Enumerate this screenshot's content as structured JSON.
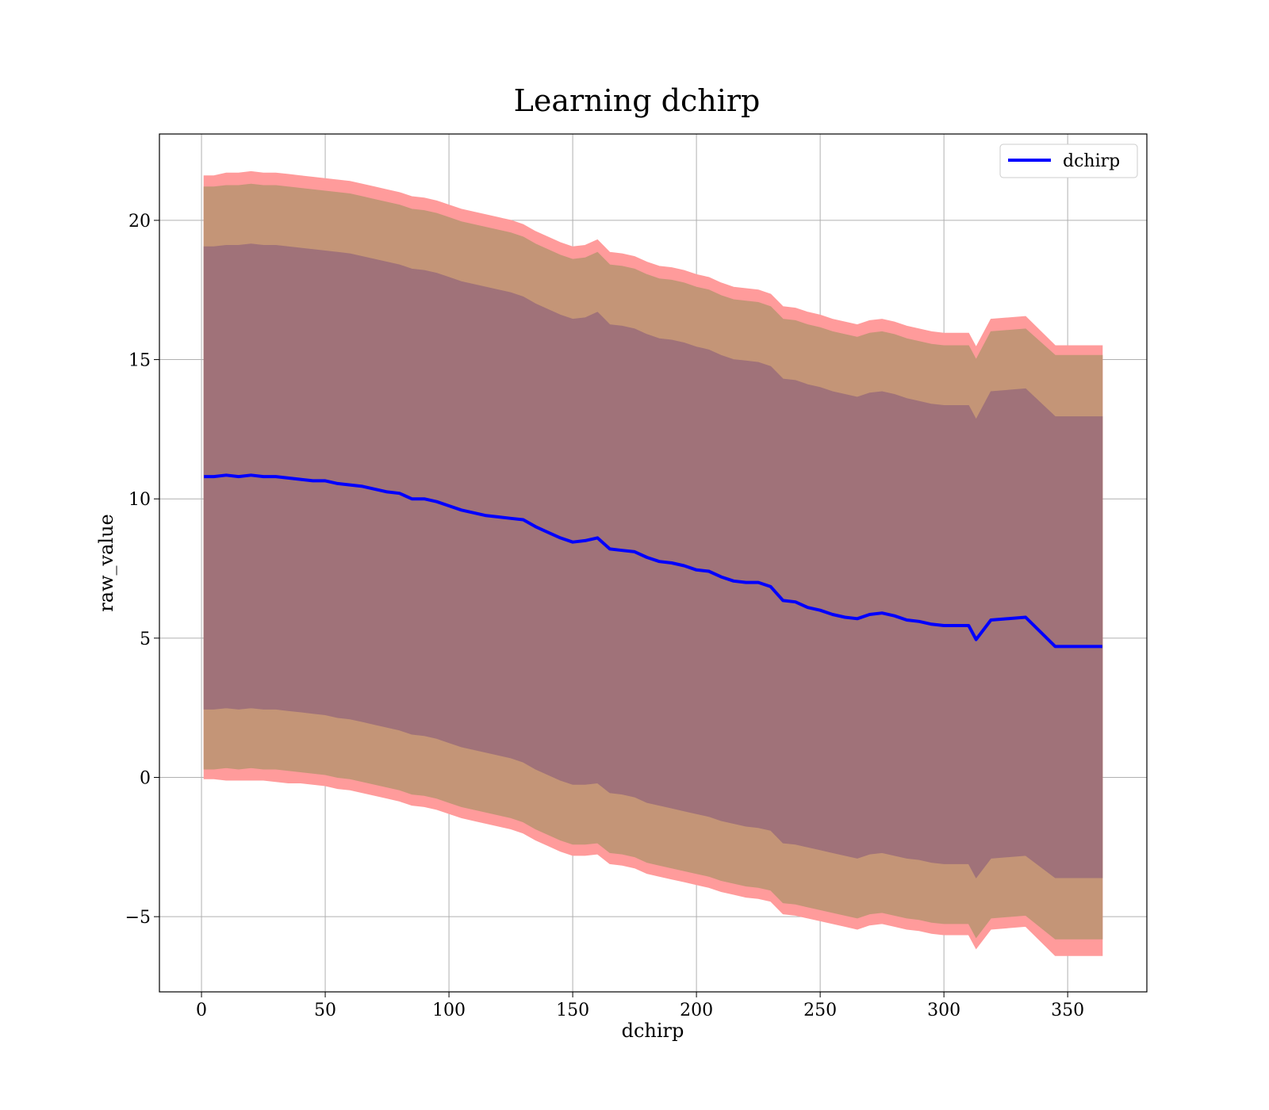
{
  "chart_data": {
    "type": "line",
    "title": "Learning dchirp",
    "xlabel": "dchirp",
    "ylabel": "raw_value",
    "xlim": [
      -17,
      382
    ],
    "ylim": [
      -7.7,
      23.1
    ],
    "xticks": [
      0,
      50,
      100,
      150,
      200,
      250,
      300,
      350
    ],
    "xtick_labels": [
      "0",
      "50",
      "100",
      "150",
      "200",
      "250",
      "300",
      "350"
    ],
    "yticks": [
      -5,
      0,
      5,
      10,
      15,
      20
    ],
    "ytick_labels": [
      "−5",
      "0",
      "5",
      "10",
      "15",
      "20"
    ],
    "grid": true,
    "legend": {
      "position": "top-right",
      "entries": [
        "dchirp"
      ]
    },
    "colors": {
      "line": "#0000ff",
      "outer_band": "#ff9b9b",
      "middle_band": "#c49577",
      "inner_band": "#a07279"
    },
    "series": [
      {
        "name": "dchirp",
        "x": [
          1,
          5,
          10,
          15,
          20,
          25,
          30,
          35,
          40,
          45,
          50,
          55,
          60,
          65,
          70,
          75,
          80,
          85,
          90,
          95,
          100,
          105,
          110,
          115,
          120,
          125,
          130,
          135,
          140,
          145,
          150,
          155,
          160,
          165,
          170,
          175,
          180,
          185,
          190,
          195,
          200,
          205,
          210,
          215,
          220,
          225,
          230,
          235,
          240,
          245,
          250,
          255,
          260,
          265,
          270,
          275,
          280,
          285,
          290,
          295,
          300,
          305,
          310,
          313,
          319,
          333,
          345,
          364
        ],
        "y": [
          10.8,
          10.8,
          10.85,
          10.8,
          10.85,
          10.8,
          10.8,
          10.75,
          10.7,
          10.65,
          10.65,
          10.55,
          10.5,
          10.45,
          10.35,
          10.25,
          10.2,
          10.0,
          10.0,
          9.9,
          9.75,
          9.6,
          9.5,
          9.4,
          9.35,
          9.3,
          9.25,
          9.0,
          8.8,
          8.6,
          8.45,
          8.5,
          8.6,
          8.2,
          8.15,
          8.1,
          7.9,
          7.75,
          7.7,
          7.6,
          7.45,
          7.4,
          7.2,
          7.05,
          7.0,
          7.0,
          6.85,
          6.35,
          6.3,
          6.1,
          6.0,
          5.85,
          5.75,
          5.7,
          5.85,
          5.9,
          5.8,
          5.65,
          5.6,
          5.5,
          5.45,
          5.45,
          5.45,
          4.95,
          5.65,
          5.75,
          4.7,
          4.7
        ]
      }
    ],
    "bands": [
      {
        "lower": [
          -0.05,
          -0.05,
          -0.1,
          -0.1,
          -0.1,
          -0.1,
          -0.15,
          -0.2,
          -0.2,
          -0.25,
          -0.3,
          -0.4,
          -0.45,
          -0.55,
          -0.65,
          -0.75,
          -0.85,
          -1.0,
          -1.05,
          -1.15,
          -1.3,
          -1.45,
          -1.55,
          -1.65,
          -1.75,
          -1.85,
          -2.0,
          -2.25,
          -2.45,
          -2.65,
          -2.8,
          -2.8,
          -2.75,
          -3.1,
          -3.15,
          -3.25,
          -3.45,
          -3.55,
          -3.65,
          -3.75,
          -3.85,
          -3.95,
          -4.1,
          -4.2,
          -4.3,
          -4.35,
          -4.45,
          -4.9,
          -4.95,
          -5.05,
          -5.15,
          -5.25,
          -5.35,
          -5.45,
          -5.3,
          -5.25,
          -5.35,
          -5.45,
          -5.5,
          -5.6,
          -5.65,
          -5.65,
          -5.65,
          -6.15,
          -5.45,
          -5.35,
          -6.4,
          -6.4
        ],
        "upper": [
          21.6,
          21.6,
          21.7,
          21.7,
          21.75,
          21.7,
          21.7,
          21.65,
          21.6,
          21.55,
          21.5,
          21.45,
          21.4,
          21.3,
          21.2,
          21.1,
          21.0,
          20.85,
          20.8,
          20.7,
          20.55,
          20.4,
          20.3,
          20.2,
          20.1,
          20.0,
          19.85,
          19.6,
          19.4,
          19.2,
          19.05,
          19.1,
          19.3,
          18.85,
          18.8,
          18.7,
          18.5,
          18.35,
          18.3,
          18.2,
          18.05,
          17.95,
          17.75,
          17.6,
          17.55,
          17.5,
          17.35,
          16.9,
          16.85,
          16.7,
          16.6,
          16.45,
          16.35,
          16.25,
          16.4,
          16.45,
          16.35,
          16.2,
          16.1,
          16.0,
          15.95,
          15.95,
          15.95,
          15.45,
          16.45,
          16.55,
          15.5,
          15.5
        ]
      },
      {
        "lower": [
          0.3,
          0.3,
          0.35,
          0.3,
          0.35,
          0.3,
          0.3,
          0.25,
          0.2,
          0.15,
          0.1,
          0.0,
          -0.05,
          -0.15,
          -0.25,
          -0.35,
          -0.45,
          -0.6,
          -0.65,
          -0.75,
          -0.9,
          -1.05,
          -1.15,
          -1.25,
          -1.35,
          -1.45,
          -1.6,
          -1.85,
          -2.05,
          -2.25,
          -2.4,
          -2.4,
          -2.35,
          -2.7,
          -2.75,
          -2.85,
          -3.05,
          -3.15,
          -3.25,
          -3.35,
          -3.45,
          -3.55,
          -3.7,
          -3.8,
          -3.9,
          -3.95,
          -4.05,
          -4.5,
          -4.55,
          -4.65,
          -4.75,
          -4.85,
          -4.95,
          -5.05,
          -4.9,
          -4.85,
          -4.95,
          -5.05,
          -5.1,
          -5.2,
          -5.25,
          -5.25,
          -5.25,
          -5.75,
          -5.05,
          -4.95,
          -5.8,
          -5.8
        ],
        "upper": [
          21.2,
          21.2,
          21.25,
          21.25,
          21.3,
          21.25,
          21.25,
          21.2,
          21.15,
          21.1,
          21.05,
          21.0,
          20.95,
          20.85,
          20.75,
          20.65,
          20.55,
          20.4,
          20.35,
          20.25,
          20.1,
          19.95,
          19.85,
          19.75,
          19.65,
          19.55,
          19.4,
          19.15,
          18.95,
          18.75,
          18.6,
          18.65,
          18.85,
          18.4,
          18.35,
          18.25,
          18.05,
          17.9,
          17.85,
          17.75,
          17.6,
          17.5,
          17.3,
          17.15,
          17.1,
          17.05,
          16.9,
          16.45,
          16.4,
          16.25,
          16.15,
          16.0,
          15.9,
          15.8,
          15.95,
          16.0,
          15.9,
          15.75,
          15.65,
          15.55,
          15.5,
          15.5,
          15.5,
          15.0,
          16.0,
          16.1,
          15.15,
          15.15
        ]
      },
      {
        "lower": [
          2.45,
          2.45,
          2.5,
          2.45,
          2.5,
          2.45,
          2.45,
          2.4,
          2.35,
          2.3,
          2.25,
          2.15,
          2.1,
          2.0,
          1.9,
          1.8,
          1.7,
          1.55,
          1.5,
          1.4,
          1.25,
          1.1,
          1.0,
          0.9,
          0.8,
          0.7,
          0.55,
          0.3,
          0.1,
          -0.1,
          -0.25,
          -0.25,
          -0.2,
          -0.55,
          -0.6,
          -0.7,
          -0.9,
          -1.0,
          -1.1,
          -1.2,
          -1.3,
          -1.4,
          -1.55,
          -1.65,
          -1.75,
          -1.8,
          -1.9,
          -2.35,
          -2.4,
          -2.5,
          -2.6,
          -2.7,
          -2.8,
          -2.9,
          -2.75,
          -2.7,
          -2.8,
          -2.9,
          -2.95,
          -3.05,
          -3.1,
          -3.1,
          -3.1,
          -3.6,
          -2.9,
          -2.8,
          -3.6,
          -3.6
        ],
        "upper": [
          19.05,
          19.05,
          19.1,
          19.1,
          19.15,
          19.1,
          19.1,
          19.05,
          19.0,
          18.95,
          18.9,
          18.85,
          18.8,
          18.7,
          18.6,
          18.5,
          18.4,
          18.25,
          18.2,
          18.1,
          17.95,
          17.8,
          17.7,
          17.6,
          17.5,
          17.4,
          17.25,
          17.0,
          16.8,
          16.6,
          16.45,
          16.5,
          16.7,
          16.25,
          16.2,
          16.1,
          15.9,
          15.75,
          15.7,
          15.6,
          15.45,
          15.35,
          15.15,
          15.0,
          14.95,
          14.9,
          14.75,
          14.3,
          14.25,
          14.1,
          14.0,
          13.85,
          13.75,
          13.65,
          13.8,
          13.85,
          13.75,
          13.6,
          13.5,
          13.4,
          13.35,
          13.35,
          13.35,
          12.85,
          13.85,
          13.95,
          12.95,
          12.95
        ]
      }
    ]
  }
}
